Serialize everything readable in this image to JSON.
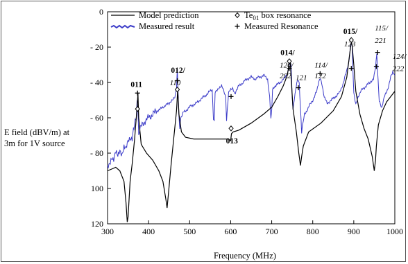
{
  "chart_data": {
    "type": "line",
    "xlabel": "Frequency (MHz)",
    "ylabel_lines": [
      "E field (dBV/m) at",
      "3m for 1V source"
    ],
    "xlim": [
      300,
      1000
    ],
    "ylim": [
      0,
      120
    ],
    "y_axis_inverted": true,
    "xticks": [
      300,
      400,
      500,
      600,
      700,
      800,
      900,
      1000
    ],
    "xtick_labels": [
      "300",
      "400",
      "500",
      "600",
      "700",
      "800",
      "900",
      "1000"
    ],
    "yticks": [
      0,
      20,
      40,
      60,
      80,
      100,
      120
    ],
    "ytick_labels": [
      "0",
      "- 20",
      "- 40",
      "- 60",
      "- 80",
      "100",
      "120"
    ],
    "grid": false,
    "legend_position": "top-left",
    "legend": {
      "model": "Model prediction",
      "measured": "Measured result",
      "te_prefix": "Te",
      "te_sub": "01",
      "te_suffix": " box resonance",
      "measured_resonance": "Measured Resonance"
    },
    "colors": {
      "model": "#000000",
      "measured": "#3a3ac8"
    },
    "series": [
      {
        "name": "Model prediction",
        "points": [
          [
            300,
            90
          ],
          [
            310,
            89
          ],
          [
            320,
            88
          ],
          [
            330,
            90
          ],
          [
            340,
            96
          ],
          [
            345,
            108
          ],
          [
            348,
            119
          ],
          [
            350,
            116
          ],
          [
            355,
            96
          ],
          [
            360,
            86
          ],
          [
            366,
            72
          ],
          [
            372,
            54
          ],
          [
            374,
            46
          ],
          [
            376,
            60
          ],
          [
            382,
            75
          ],
          [
            395,
            80
          ],
          [
            410,
            84
          ],
          [
            425,
            90
          ],
          [
            435,
            96
          ],
          [
            442,
            106
          ],
          [
            445,
            111
          ],
          [
            448,
            104
          ],
          [
            455,
            86
          ],
          [
            462,
            70
          ],
          [
            468,
            56
          ],
          [
            471,
            44
          ],
          [
            474,
            58
          ],
          [
            480,
            68
          ],
          [
            490,
            71
          ],
          [
            510,
            72
          ],
          [
            540,
            72
          ],
          [
            570,
            72
          ],
          [
            595,
            72
          ],
          [
            600,
            73
          ],
          [
            602,
            69
          ],
          [
            606,
            68
          ],
          [
            620,
            67
          ],
          [
            650,
            63
          ],
          [
            680,
            58
          ],
          [
            700,
            54
          ],
          [
            715,
            48
          ],
          [
            728,
            42
          ],
          [
            738,
            36
          ],
          [
            743,
            29
          ],
          [
            745,
            28
          ],
          [
            747,
            36
          ],
          [
            752,
            55
          ],
          [
            760,
            68
          ],
          [
            766,
            80
          ],
          [
            770,
            87
          ],
          [
            773,
            82
          ],
          [
            777,
            76
          ],
          [
            790,
            68
          ],
          [
            820,
            63
          ],
          [
            850,
            56
          ],
          [
            870,
            48
          ],
          [
            883,
            37
          ],
          [
            890,
            24
          ],
          [
            894,
            17
          ],
          [
            896,
            19
          ],
          [
            900,
            30
          ],
          [
            905,
            45
          ],
          [
            915,
            58
          ],
          [
            925,
            66
          ],
          [
            935,
            72
          ],
          [
            945,
            82
          ],
          [
            950,
            90
          ],
          [
            953,
            84
          ],
          [
            955,
            76
          ],
          [
            960,
            64
          ],
          [
            970,
            56
          ],
          [
            980,
            51
          ],
          [
            990,
            48
          ],
          [
            1000,
            45
          ]
        ]
      },
      {
        "name": "Measured result",
        "points": [
          [
            300,
            88
          ],
          [
            305,
            85
          ],
          [
            310,
            82
          ],
          [
            315,
            84
          ],
          [
            320,
            80
          ],
          [
            325,
            82
          ],
          [
            330,
            78
          ],
          [
            335,
            80
          ],
          [
            340,
            76
          ],
          [
            345,
            78
          ],
          [
            350,
            74
          ],
          [
            355,
            72
          ],
          [
            360,
            71
          ],
          [
            363,
            66
          ],
          [
            366,
            64
          ],
          [
            370,
            60
          ],
          [
            372,
            52
          ],
          [
            374,
            54
          ],
          [
            376,
            70
          ],
          [
            378,
            68
          ],
          [
            380,
            66
          ],
          [
            390,
            62
          ],
          [
            400,
            60
          ],
          [
            410,
            58
          ],
          [
            420,
            56
          ],
          [
            430,
            55
          ],
          [
            440,
            53
          ],
          [
            450,
            52
          ],
          [
            458,
            50
          ],
          [
            464,
            48
          ],
          [
            468,
            43
          ],
          [
            470,
            32
          ],
          [
            472,
            46
          ],
          [
            474,
            60
          ],
          [
            476,
            66
          ],
          [
            478,
            60
          ],
          [
            485,
            57
          ],
          [
            495,
            55
          ],
          [
            505,
            53
          ],
          [
            515,
            52
          ],
          [
            525,
            50
          ],
          [
            535,
            48
          ],
          [
            545,
            46
          ],
          [
            555,
            44
          ],
          [
            558,
            60
          ],
          [
            560,
            62
          ],
          [
            562,
            46
          ],
          [
            570,
            44
          ],
          [
            578,
            42
          ],
          [
            588,
            48
          ],
          [
            590,
            62
          ],
          [
            592,
            55
          ],
          [
            595,
            46
          ],
          [
            600,
            44
          ],
          [
            605,
            43
          ],
          [
            610,
            46
          ],
          [
            620,
            42
          ],
          [
            630,
            40
          ],
          [
            640,
            38
          ],
          [
            650,
            37
          ],
          [
            660,
            38
          ],
          [
            670,
            37
          ],
          [
            680,
            36
          ],
          [
            690,
            38
          ],
          [
            695,
            48
          ],
          [
            698,
            60
          ],
          [
            700,
            56
          ],
          [
            702,
            44
          ],
          [
            710,
            42
          ],
          [
            720,
            40
          ],
          [
            730,
            38
          ],
          [
            738,
            36
          ],
          [
            743,
            30
          ],
          [
            745,
            28
          ],
          [
            747,
            30
          ],
          [
            750,
            48
          ],
          [
            752,
            56
          ],
          [
            755,
            50
          ],
          [
            760,
            42
          ],
          [
            764,
            38
          ],
          [
            767,
            40
          ],
          [
            770,
            54
          ],
          [
            773,
            68
          ],
          [
            775,
            64
          ],
          [
            780,
            58
          ],
          [
            790,
            54
          ],
          [
            800,
            50
          ],
          [
            810,
            45
          ],
          [
            815,
            40
          ],
          [
            818,
            38
          ],
          [
            822,
            40
          ],
          [
            828,
            48
          ],
          [
            835,
            52
          ],
          [
            845,
            50
          ],
          [
            855,
            48
          ],
          [
            865,
            46
          ],
          [
            875,
            40
          ],
          [
            882,
            34
          ],
          [
            888,
            28
          ],
          [
            892,
            20
          ],
          [
            894,
            16
          ],
          [
            896,
            20
          ],
          [
            900,
            46
          ],
          [
            905,
            52
          ],
          [
            910,
            48
          ],
          [
            920,
            44
          ],
          [
            930,
            42
          ],
          [
            940,
            40
          ],
          [
            948,
            38
          ],
          [
            953,
            32
          ],
          [
            956,
            24
          ],
          [
            958,
            34
          ],
          [
            962,
            50
          ],
          [
            968,
            54
          ],
          [
            975,
            48
          ],
          [
            985,
            42
          ],
          [
            990,
            36
          ],
          [
            995,
            34
          ],
          [
            1000,
            36
          ]
        ]
      }
    ],
    "te01_resonances": [
      [
        373,
        55
      ],
      [
        470,
        44
      ],
      [
        601,
        66
      ],
      [
        743,
        28
      ],
      [
        894,
        16
      ]
    ],
    "measured_resonances": [
      [
        373,
        46
      ],
      [
        470,
        39
      ],
      [
        601,
        48
      ],
      [
        743,
        32
      ],
      [
        765,
        43
      ],
      [
        818,
        35
      ],
      [
        894,
        32
      ],
      [
        955,
        31
      ],
      [
        958,
        23
      ]
    ],
    "annotations": [
      {
        "text": "011",
        "bold": true,
        "x": 370,
        "y": 41
      },
      {
        "text": "012/",
        "bold": true,
        "x": 468,
        "y": 33
      },
      {
        "text": "110",
        "italic": true,
        "x": 465,
        "y": 40
      },
      {
        "text": "013",
        "bold": true,
        "x": 602,
        "y": 73
      },
      {
        "text": "014/",
        "bold": true,
        "x": 735,
        "y": 23
      },
      {
        "text": "120/",
        "italic": true,
        "x": 733,
        "y": 30
      },
      {
        "text": "202",
        "italic": true,
        "x": 733,
        "y": 36
      },
      {
        "text": "121",
        "italic": true,
        "x": 772,
        "y": 37
      },
      {
        "text": "114/",
        "italic": true,
        "x": 818,
        "y": 30
      },
      {
        "text": "122",
        "italic": true,
        "x": 818,
        "y": 36
      },
      {
        "text": "015/",
        "bold": true,
        "x": 888,
        "y": 11
      },
      {
        "text": "123",
        "italic": true,
        "x": 890,
        "y": 18
      },
      {
        "text": "115/",
        "italic": true,
        "x": 965,
        "y": 9
      },
      {
        "text": "221",
        "italic": true,
        "x": 965,
        "y": 16
      },
      {
        "text": "124/",
        "italic": true,
        "x": 1008,
        "y": 25
      },
      {
        "text": "222",
        "italic": true,
        "x": 1008,
        "y": 32
      }
    ]
  }
}
